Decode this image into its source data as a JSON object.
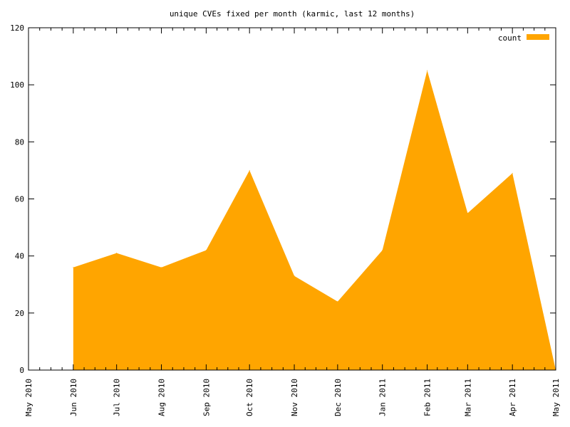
{
  "chart_data": {
    "type": "area",
    "title": "unique CVEs fixed per month (karmic, last 12 months)",
    "xlabel": "",
    "ylabel": "",
    "x_ticks": [
      "May 2010",
      "Jun 2010",
      "Jul 2010",
      "Aug 2010",
      "Sep 2010",
      "Oct 2010",
      "Nov 2010",
      "Dec 2010",
      "Jan 2011",
      "Feb 2011",
      "Mar 2011",
      "Apr 2011",
      "May 2011"
    ],
    "x": [
      "2010-06-01",
      "2010-07-01",
      "2010-08-01",
      "2010-09-01",
      "2010-10-01",
      "2010-11-01",
      "2010-12-01",
      "2011-01-01",
      "2011-02-01",
      "2011-03-01",
      "2011-04-01",
      "2011-05-01"
    ],
    "xlim": [
      "2010-05-01",
      "2011-05-01"
    ],
    "ylim": [
      0,
      120
    ],
    "y_ticks": [
      0,
      20,
      40,
      60,
      80,
      100,
      120
    ],
    "series": [
      {
        "name": "count",
        "color": "#ffa500",
        "values": [
          36,
          41,
          36,
          42,
          70,
          33,
          24,
          42,
          105,
          55,
          69,
          0
        ]
      }
    ],
    "legend_position": "top-right",
    "grid": false
  }
}
